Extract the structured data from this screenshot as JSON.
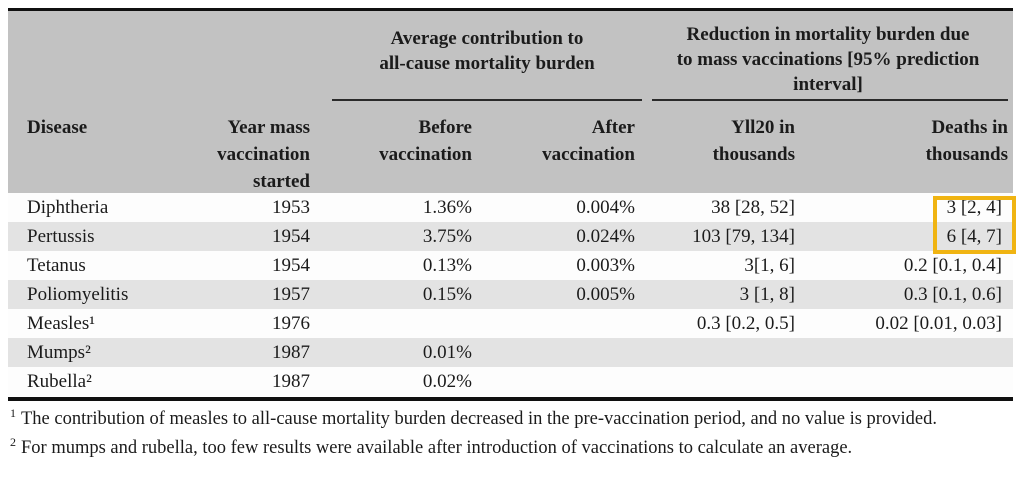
{
  "table": {
    "group_headers": [
      {
        "label": "Average contribution to\nall-cause mortality burden"
      },
      {
        "label": "Reduction in mortality burden due\nto mass vaccinations [95% prediction\ninterval]"
      }
    ],
    "columns": [
      {
        "label": "Disease"
      },
      {
        "label": "Year mass\nvaccination\nstarted"
      },
      {
        "label": "Before\nvaccination"
      },
      {
        "label": "After\nvaccination"
      },
      {
        "label": "Yll20 in\nthousands"
      },
      {
        "label": "Deaths in\nthousands"
      }
    ],
    "rows": [
      {
        "disease": "Diphtheria",
        "year": "1953",
        "before": "1.36%",
        "after": "0.004%",
        "yll": "38 [28, 52]",
        "deaths": "3 [2, 4]"
      },
      {
        "disease": "Pertussis",
        "year": "1954",
        "before": "3.75%",
        "after": "0.024%",
        "yll": "103 [79, 134]",
        "deaths": "6 [4, 7]"
      },
      {
        "disease": "Tetanus",
        "year": "1954",
        "before": "0.13%",
        "after": "0.003%",
        "yll": "3[1, 6]",
        "deaths": "0.2 [0.1, 0.4]"
      },
      {
        "disease": "Poliomyelitis",
        "year": "1957",
        "before": "0.15%",
        "after": "0.005%",
        "yll": "3 [1, 8]",
        "deaths": "0.3 [0.1, 0.6]"
      },
      {
        "disease": "Measles¹",
        "year": "1976",
        "before": "",
        "after": "",
        "yll": "0.3 [0.2, 0.5]",
        "deaths": "0.02 [0.01, 0.03]"
      },
      {
        "disease": "Mumps²",
        "year": "1987",
        "before": "0.01%",
        "after": "",
        "yll": "",
        "deaths": ""
      },
      {
        "disease": "Rubella²",
        "year": "1987",
        "before": "0.02%",
        "after": "",
        "yll": "",
        "deaths": ""
      }
    ],
    "highlight": {
      "color": "#F0B412",
      "column": "deaths",
      "row_start": 0,
      "row_end": 1
    },
    "colors": {
      "header_background": "#C2C2C2",
      "row_shade": "#E3E3E3",
      "rule_black": "#101010"
    }
  },
  "footnotes": [
    {
      "marker": "1",
      "text": "The contribution of measles to all-cause mortality burden decreased in the pre-vaccination period, and no value is provided."
    },
    {
      "marker": "2",
      "text": "For mumps and rubella, too few results were available after introduction of vaccinations to calculate an average."
    }
  ]
}
